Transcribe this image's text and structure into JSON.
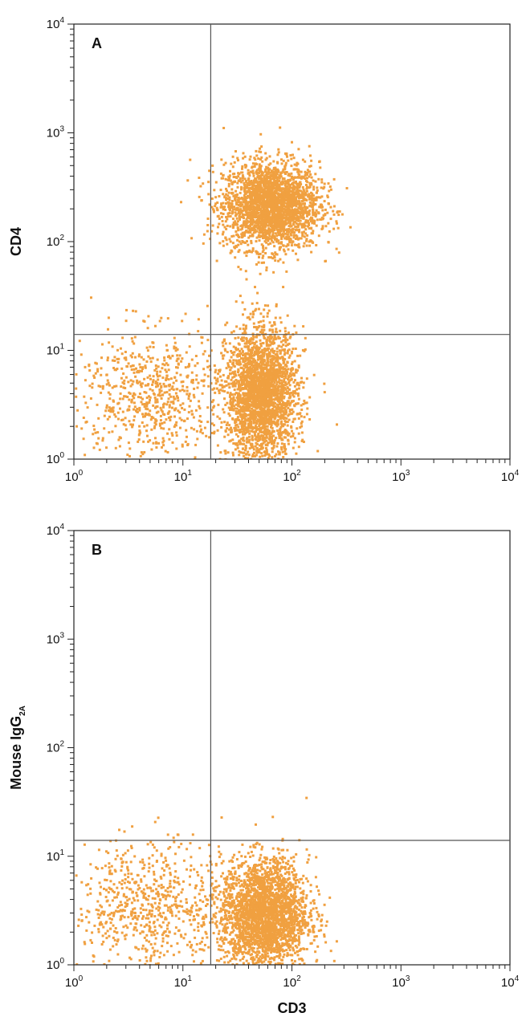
{
  "chart_data": [
    {
      "type": "scatter",
      "panel_label": "A",
      "xlabel": "",
      "ylabel": "CD4",
      "ylabel_sub": "",
      "x_scale": "log",
      "y_scale": "log",
      "xlim": [
        1,
        10000
      ],
      "ylim": [
        1,
        10000
      ],
      "x_ticks": [
        {
          "base": "10",
          "exp": "0"
        },
        {
          "base": "10",
          "exp": "1"
        },
        {
          "base": "10",
          "exp": "2"
        },
        {
          "base": "10",
          "exp": "3"
        },
        {
          "base": "10",
          "exp": "4"
        }
      ],
      "y_ticks": [
        {
          "base": "10",
          "exp": "0"
        },
        {
          "base": "10",
          "exp": "1"
        },
        {
          "base": "10",
          "exp": "2"
        },
        {
          "base": "10",
          "exp": "3"
        },
        {
          "base": "10",
          "exp": "4"
        }
      ],
      "quadrant_gates": {
        "x": 18,
        "y": 14
      },
      "point_color": "#F0A040",
      "populations": [
        {
          "x_center": 63,
          "y_center": 220,
          "x_spread_decades": 0.22,
          "y_spread_decades": 0.2,
          "density": "high"
        },
        {
          "x_center": 52,
          "y_center": 4,
          "x_spread_decades": 0.16,
          "y_spread_decades": 0.3,
          "density": "high"
        },
        {
          "x_center": 5,
          "y_center": 4,
          "x_spread_decades": 0.35,
          "y_spread_decades": 0.3,
          "density": "medium"
        }
      ]
    },
    {
      "type": "scatter",
      "panel_label": "B",
      "xlabel": "CD3",
      "ylabel": "Mouse IgG",
      "ylabel_sub": "2A",
      "x_scale": "log",
      "y_scale": "log",
      "xlim": [
        1,
        10000
      ],
      "ylim": [
        1,
        10000
      ],
      "x_ticks": [
        {
          "base": "10",
          "exp": "0"
        },
        {
          "base": "10",
          "exp": "1"
        },
        {
          "base": "10",
          "exp": "2"
        },
        {
          "base": "10",
          "exp": "3"
        },
        {
          "base": "10",
          "exp": "4"
        }
      ],
      "y_ticks": [
        {
          "base": "10",
          "exp": "0"
        },
        {
          "base": "10",
          "exp": "1"
        },
        {
          "base": "10",
          "exp": "2"
        },
        {
          "base": "10",
          "exp": "3"
        },
        {
          "base": "10",
          "exp": "4"
        }
      ],
      "quadrant_gates": {
        "x": 18,
        "y": 14
      },
      "point_color": "#F0A040",
      "populations": [
        {
          "x_center": 55,
          "y_center": 3,
          "x_spread_decades": 0.2,
          "y_spread_decades": 0.25,
          "density": "high"
        },
        {
          "x_center": 5,
          "y_center": 3.5,
          "x_spread_decades": 0.35,
          "y_spread_decades": 0.3,
          "density": "medium"
        }
      ]
    }
  ]
}
